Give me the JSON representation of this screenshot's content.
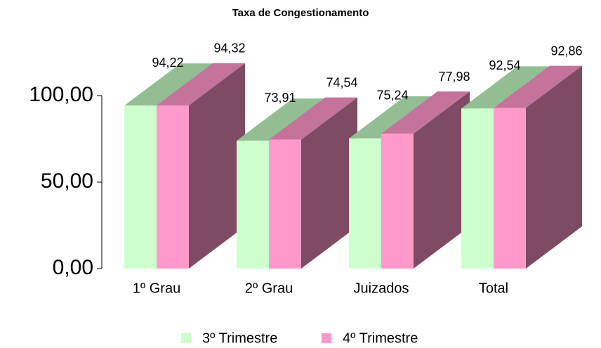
{
  "chart_data": {
    "type": "bar3d",
    "title": "Taxa de Congestionamento",
    "categories": [
      "1º Grau",
      "2º Grau",
      "Juizados",
      "Total"
    ],
    "series": [
      {
        "name": "3º Trimestre",
        "color": "#ccffcc",
        "values": [
          94.22,
          73.91,
          75.24,
          92.54
        ],
        "value_labels": [
          "94,22",
          "73,91",
          "75,24",
          "92,54"
        ]
      },
      {
        "name": "4º Trimestre",
        "color": "#ff99cc",
        "values": [
          94.32,
          74.54,
          77.98,
          92.86
        ],
        "value_labels": [
          "94,32",
          "74,54",
          "77,98",
          "92,86"
        ]
      }
    ],
    "ylim": [
      0,
      100
    ],
    "yticks": [
      {
        "value": 0,
        "label": "0,00"
      },
      {
        "value": 50,
        "label": "50,00"
      },
      {
        "value": 100,
        "label": "100,00"
      }
    ],
    "legend": "bottom"
  }
}
